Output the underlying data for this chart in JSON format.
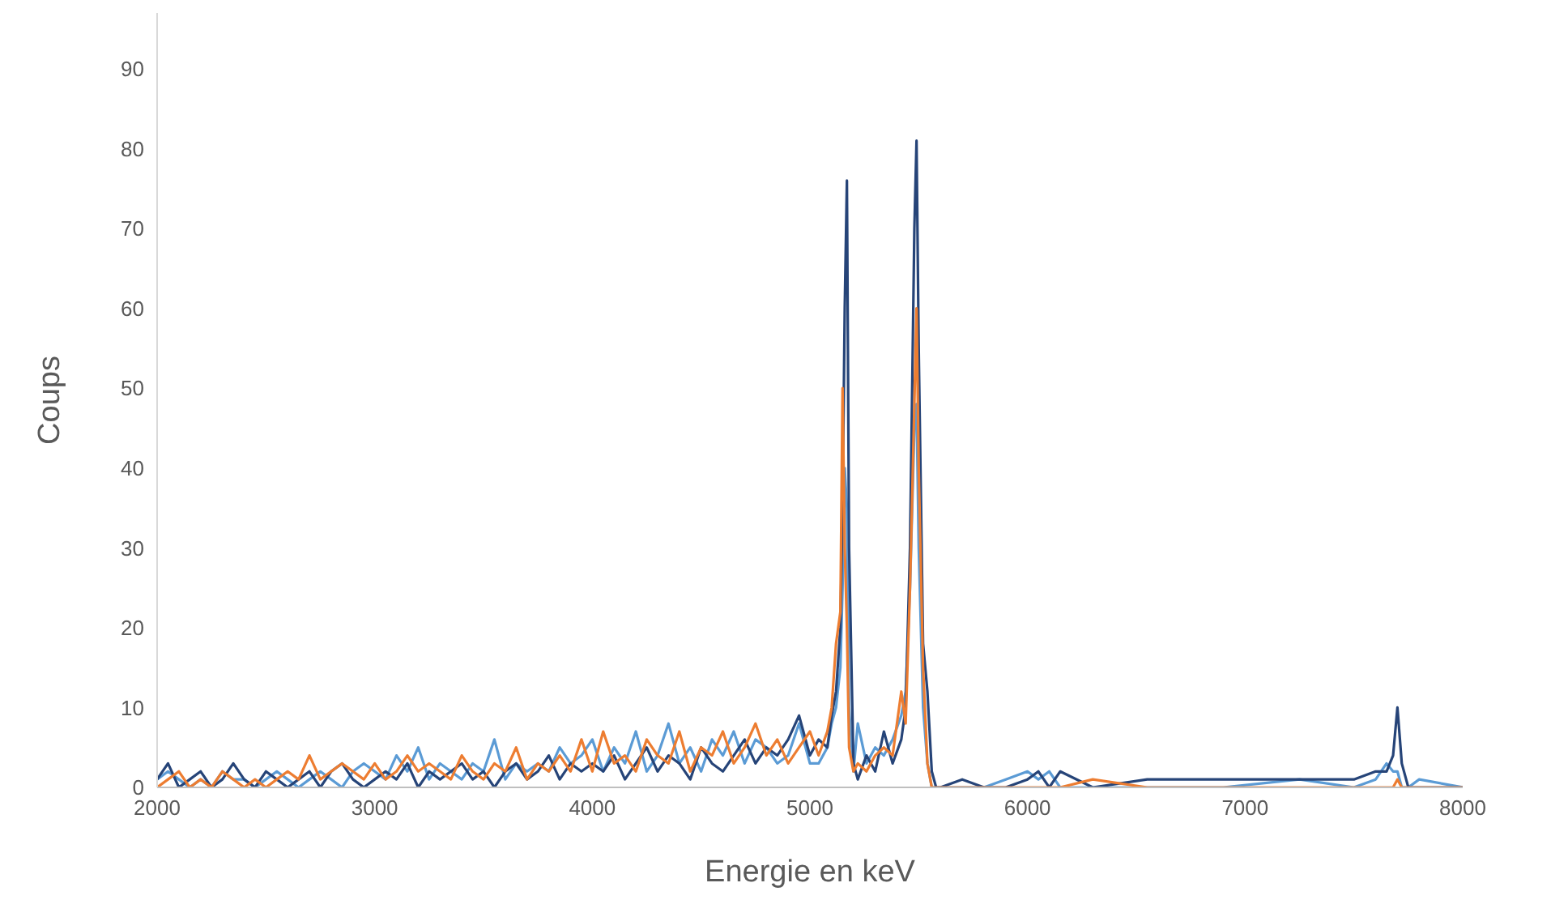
{
  "chart_data": {
    "type": "line",
    "xlabel": "Energie en keV",
    "ylabel": "Coups",
    "x": [
      2000,
      2050,
      2100,
      2150,
      2200,
      2250,
      2300,
      2350,
      2400,
      2450,
      2500,
      2550,
      2600,
      2650,
      2700,
      2750,
      2800,
      2850,
      2900,
      2950,
      3000,
      3050,
      3100,
      3150,
      3200,
      3250,
      3300,
      3350,
      3400,
      3450,
      3500,
      3550,
      3600,
      3650,
      3700,
      3750,
      3800,
      3850,
      3900,
      3950,
      4000,
      4050,
      4100,
      4150,
      4200,
      4250,
      4300,
      4350,
      4400,
      4450,
      4500,
      4550,
      4600,
      4650,
      4700,
      4750,
      4800,
      4850,
      4900,
      4950,
      5000,
      5040,
      5080,
      5100,
      5120,
      5140,
      5150,
      5160,
      5170,
      5180,
      5200,
      5220,
      5260,
      5300,
      5340,
      5380,
      5420,
      5440,
      5460,
      5480,
      5490,
      5500,
      5520,
      5540,
      5560,
      5580,
      5600,
      5700,
      5800,
      5900,
      6000,
      6050,
      6100,
      6150,
      6300,
      6550,
      6900,
      7250,
      7500,
      7600,
      7650,
      7680,
      7700,
      7720,
      7750,
      7800,
      8000
    ],
    "series": [
      {
        "color": "#5b9bd5",
        "values": [
          1,
          2,
          1,
          0,
          1,
          0,
          2,
          1,
          1,
          0,
          1,
          2,
          1,
          0,
          1,
          2,
          1,
          0,
          2,
          3,
          2,
          1,
          4,
          2,
          5,
          1,
          3,
          2,
          1,
          3,
          2,
          6,
          1,
          3,
          2,
          3,
          2,
          5,
          3,
          4,
          6,
          2,
          5,
          3,
          7,
          2,
          4,
          8,
          3,
          5,
          2,
          6,
          4,
          7,
          3,
          6,
          5,
          3,
          4,
          8,
          3,
          3,
          5,
          8,
          10,
          15,
          25,
          40,
          35,
          10,
          2,
          8,
          3,
          5,
          4,
          6,
          9,
          12,
          25,
          45,
          48,
          30,
          10,
          3,
          0,
          0,
          0,
          0,
          0,
          1,
          2,
          1,
          2,
          0,
          0,
          0,
          0,
          1,
          0,
          1,
          3,
          2,
          2,
          0,
          0,
          1,
          0
        ]
      },
      {
        "color": "#264478",
        "values": [
          1,
          3,
          0,
          1,
          2,
          0,
          1,
          3,
          1,
          0,
          2,
          1,
          0,
          1,
          2,
          0,
          2,
          3,
          1,
          0,
          1,
          2,
          1,
          3,
          0,
          2,
          1,
          2,
          3,
          1,
          2,
          0,
          2,
          3,
          1,
          2,
          4,
          1,
          3,
          2,
          3,
          2,
          4,
          1,
          3,
          5,
          2,
          4,
          3,
          1,
          5,
          3,
          2,
          4,
          6,
          3,
          5,
          4,
          6,
          9,
          4,
          6,
          5,
          9,
          12,
          20,
          35,
          60,
          76,
          30,
          3,
          1,
          4,
          2,
          7,
          3,
          6,
          10,
          30,
          70,
          81,
          55,
          18,
          12,
          2,
          0,
          0,
          1,
          0,
          0,
          1,
          2,
          0,
          2,
          0,
          1,
          1,
          1,
          1,
          2,
          2,
          4,
          10,
          3,
          0,
          0,
          0
        ]
      },
      {
        "color": "#ed7d31",
        "values": [
          0,
          1,
          2,
          0,
          1,
          0,
          2,
          1,
          0,
          1,
          0,
          1,
          2,
          1,
          4,
          1,
          2,
          3,
          2,
          1,
          3,
          1,
          2,
          4,
          2,
          3,
          2,
          1,
          4,
          2,
          1,
          3,
          2,
          5,
          1,
          3,
          2,
          4,
          2,
          6,
          2,
          7,
          3,
          4,
          2,
          6,
          4,
          3,
          7,
          2,
          5,
          4,
          7,
          3,
          5,
          8,
          4,
          6,
          3,
          5,
          7,
          4,
          7,
          10,
          18,
          22,
          50,
          30,
          20,
          5,
          2,
          3,
          2,
          4,
          5,
          4,
          12,
          8,
          25,
          48,
          60,
          40,
          15,
          3,
          0,
          0,
          0,
          0,
          0,
          0,
          0,
          0,
          0,
          0,
          1,
          0,
          0,
          0,
          0,
          0,
          0,
          0,
          1,
          0,
          0,
          0,
          0
        ]
      }
    ],
    "xlim": [
      2000,
      8000
    ],
    "xticks": [
      2000,
      3000,
      4000,
      5000,
      6000,
      7000,
      8000
    ],
    "ylim": [
      0,
      97
    ],
    "yticks": [
      0,
      10,
      20,
      30,
      40,
      50,
      60,
      70,
      80,
      90
    ],
    "grid": false,
    "legend": false,
    "marker": "none",
    "line_style": "solid"
  }
}
